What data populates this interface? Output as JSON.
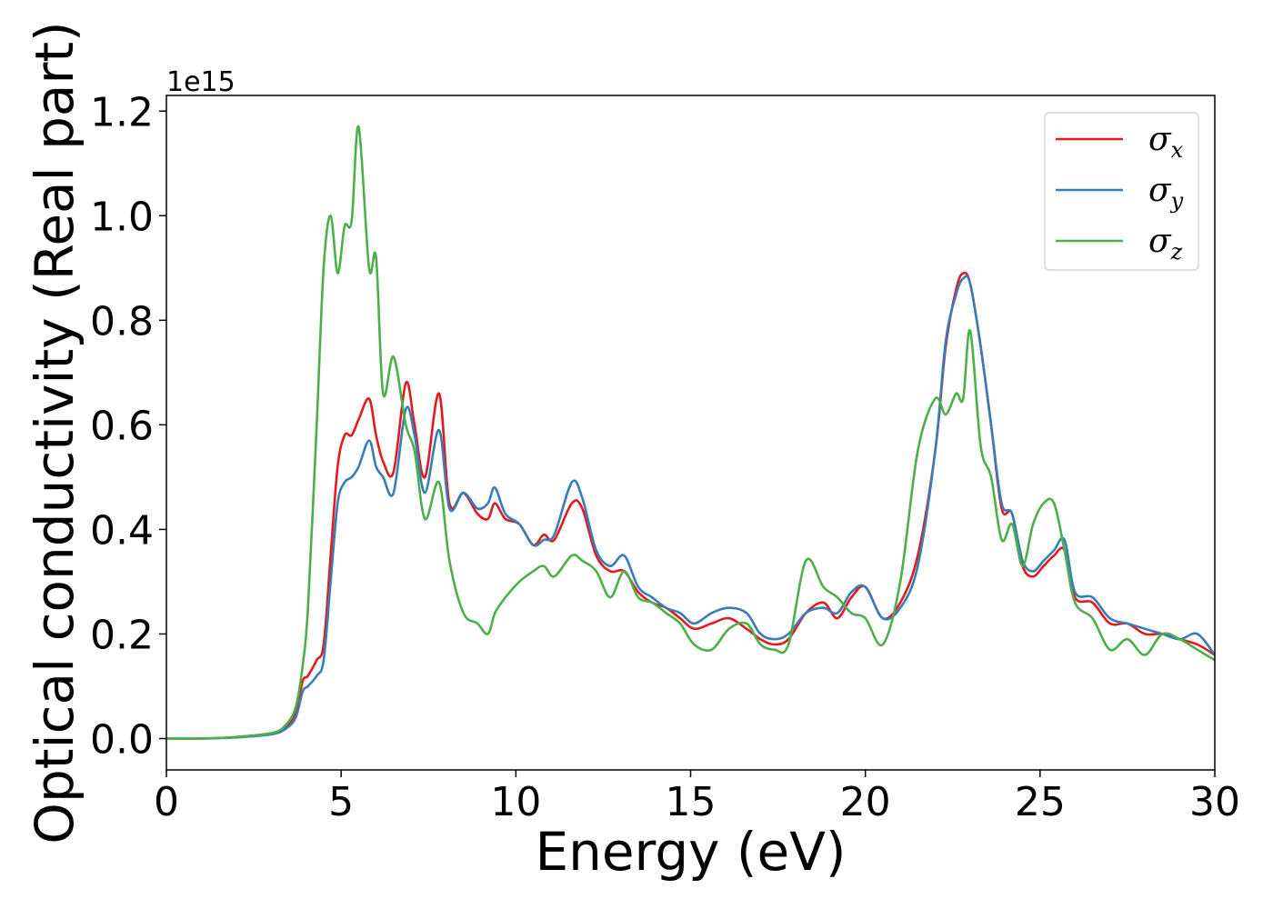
{
  "chart_data": {
    "type": "line",
    "xlabel": "Energy (eV)",
    "ylabel": "Optical conductivity (Real part)",
    "y_offset_label": "1e15",
    "xlim": [
      0,
      30
    ],
    "ylim": [
      -0.06,
      1.23
    ],
    "xticks": [
      0,
      5,
      10,
      15,
      20,
      25,
      30
    ],
    "yticks": [
      0.0,
      0.2,
      0.4,
      0.6,
      0.8,
      1.0,
      1.2
    ],
    "xtick_labels": [
      "0",
      "5",
      "10",
      "15",
      "20",
      "25",
      "30"
    ],
    "ytick_labels": [
      "0.0",
      "0.2",
      "0.4",
      "0.6",
      "0.8",
      "1.0",
      "1.2"
    ],
    "grid": false,
    "legend_position": "top-right",
    "series": [
      {
        "name": "σx",
        "symbol": "σ",
        "subscript": "x",
        "color": "#e41a1c",
        "x": [
          0,
          1,
          2,
          3,
          3.4,
          3.7,
          3.9,
          4.05,
          4.3,
          4.5,
          4.7,
          4.9,
          5.1,
          5.3,
          5.5,
          5.8,
          6.0,
          6.2,
          6.5,
          6.85,
          7.1,
          7.4,
          7.8,
          8.1,
          8.5,
          8.9,
          9.2,
          9.4,
          9.7,
          10.1,
          10.5,
          10.8,
          11.1,
          11.6,
          11.9,
          12.3,
          12.7,
          13.1,
          13.5,
          13.9,
          14.3,
          14.7,
          15.1,
          15.6,
          16.1,
          16.6,
          17.0,
          17.4,
          17.8,
          18.3,
          18.8,
          19.2,
          19.6,
          20.0,
          20.5,
          21.0,
          21.5,
          22.0,
          22.3,
          22.6,
          22.8,
          23.0,
          23.3,
          23.6,
          23.9,
          24.2,
          24.5,
          24.8,
          25.1,
          25.4,
          25.7,
          26.0,
          26.5,
          27.0,
          27.5,
          28.0,
          28.5,
          29.0,
          29.5,
          30.0
        ],
        "y": [
          0.0,
          0.0,
          0.003,
          0.01,
          0.02,
          0.05,
          0.11,
          0.12,
          0.15,
          0.18,
          0.35,
          0.52,
          0.58,
          0.58,
          0.61,
          0.65,
          0.58,
          0.53,
          0.51,
          0.68,
          0.6,
          0.5,
          0.66,
          0.45,
          0.47,
          0.43,
          0.42,
          0.45,
          0.42,
          0.41,
          0.37,
          0.39,
          0.38,
          0.45,
          0.44,
          0.35,
          0.32,
          0.32,
          0.28,
          0.26,
          0.25,
          0.23,
          0.21,
          0.22,
          0.23,
          0.21,
          0.19,
          0.18,
          0.19,
          0.24,
          0.26,
          0.23,
          0.27,
          0.29,
          0.23,
          0.26,
          0.35,
          0.55,
          0.75,
          0.86,
          0.89,
          0.87,
          0.75,
          0.6,
          0.44,
          0.43,
          0.33,
          0.31,
          0.33,
          0.35,
          0.36,
          0.27,
          0.26,
          0.22,
          0.22,
          0.2,
          0.2,
          0.19,
          0.18,
          0.16
        ]
      },
      {
        "name": "σy",
        "symbol": "σ",
        "subscript": "y",
        "color": "#377eb8",
        "x": [
          0,
          1,
          2,
          3,
          3.4,
          3.7,
          3.9,
          4.05,
          4.3,
          4.5,
          4.7,
          4.9,
          5.1,
          5.3,
          5.5,
          5.8,
          6.0,
          6.2,
          6.5,
          6.85,
          7.1,
          7.4,
          7.8,
          8.1,
          8.5,
          8.9,
          9.2,
          9.4,
          9.7,
          10.1,
          10.5,
          10.8,
          11.1,
          11.6,
          11.9,
          12.3,
          12.7,
          13.1,
          13.5,
          13.9,
          14.3,
          14.7,
          15.1,
          15.6,
          16.1,
          16.6,
          17.0,
          17.4,
          17.8,
          18.3,
          18.8,
          19.2,
          19.6,
          20.0,
          20.5,
          21.0,
          21.5,
          22.0,
          22.3,
          22.6,
          22.8,
          23.0,
          23.3,
          23.6,
          23.9,
          24.2,
          24.5,
          24.8,
          25.1,
          25.4,
          25.7,
          26.0,
          26.5,
          27.0,
          27.5,
          28.0,
          28.5,
          29.0,
          29.5,
          30.0
        ],
        "y": [
          0.0,
          0.0,
          0.002,
          0.008,
          0.018,
          0.04,
          0.09,
          0.1,
          0.12,
          0.15,
          0.3,
          0.45,
          0.49,
          0.5,
          0.52,
          0.57,
          0.52,
          0.5,
          0.47,
          0.63,
          0.58,
          0.47,
          0.59,
          0.44,
          0.47,
          0.44,
          0.45,
          0.48,
          0.43,
          0.41,
          0.37,
          0.38,
          0.39,
          0.49,
          0.46,
          0.36,
          0.33,
          0.35,
          0.29,
          0.27,
          0.25,
          0.24,
          0.22,
          0.24,
          0.25,
          0.24,
          0.2,
          0.19,
          0.2,
          0.24,
          0.25,
          0.24,
          0.28,
          0.29,
          0.23,
          0.25,
          0.33,
          0.55,
          0.76,
          0.85,
          0.88,
          0.87,
          0.75,
          0.6,
          0.45,
          0.43,
          0.34,
          0.32,
          0.34,
          0.36,
          0.38,
          0.28,
          0.27,
          0.23,
          0.22,
          0.21,
          0.2,
          0.19,
          0.2,
          0.16
        ]
      },
      {
        "name": "σz",
        "symbol": "σ",
        "subscript": "z",
        "color": "#4daf4a",
        "x": [
          0,
          1,
          2,
          3,
          3.4,
          3.7,
          3.9,
          4.05,
          4.3,
          4.5,
          4.7,
          4.9,
          5.1,
          5.3,
          5.5,
          5.8,
          6.0,
          6.2,
          6.5,
          6.85,
          7.1,
          7.4,
          7.8,
          8.1,
          8.5,
          8.9,
          9.2,
          9.4,
          9.7,
          10.1,
          10.5,
          10.8,
          11.1,
          11.6,
          11.9,
          12.3,
          12.7,
          13.1,
          13.5,
          13.9,
          14.3,
          14.7,
          15.1,
          15.6,
          16.1,
          16.6,
          17.0,
          17.4,
          17.8,
          18.3,
          18.8,
          19.2,
          19.6,
          20.0,
          20.5,
          21.0,
          21.5,
          22.0,
          22.3,
          22.6,
          22.8,
          23.0,
          23.3,
          23.6,
          23.9,
          24.2,
          24.5,
          24.8,
          25.1,
          25.4,
          25.7,
          26.0,
          26.5,
          27.0,
          27.5,
          28.0,
          28.5,
          29.0,
          29.5,
          30.0
        ],
        "y": [
          0.0,
          0.0,
          0.003,
          0.01,
          0.025,
          0.06,
          0.14,
          0.25,
          0.6,
          0.9,
          1.0,
          0.89,
          0.98,
          0.99,
          1.17,
          0.9,
          0.92,
          0.66,
          0.73,
          0.6,
          0.55,
          0.42,
          0.49,
          0.34,
          0.24,
          0.22,
          0.2,
          0.24,
          0.27,
          0.3,
          0.32,
          0.33,
          0.31,
          0.35,
          0.34,
          0.32,
          0.27,
          0.32,
          0.27,
          0.26,
          0.24,
          0.22,
          0.18,
          0.17,
          0.21,
          0.22,
          0.18,
          0.17,
          0.18,
          0.34,
          0.29,
          0.27,
          0.24,
          0.23,
          0.18,
          0.3,
          0.55,
          0.65,
          0.62,
          0.66,
          0.65,
          0.78,
          0.56,
          0.5,
          0.38,
          0.41,
          0.33,
          0.41,
          0.45,
          0.45,
          0.36,
          0.26,
          0.23,
          0.17,
          0.19,
          0.16,
          0.2,
          0.19,
          0.17,
          0.15
        ]
      }
    ]
  }
}
